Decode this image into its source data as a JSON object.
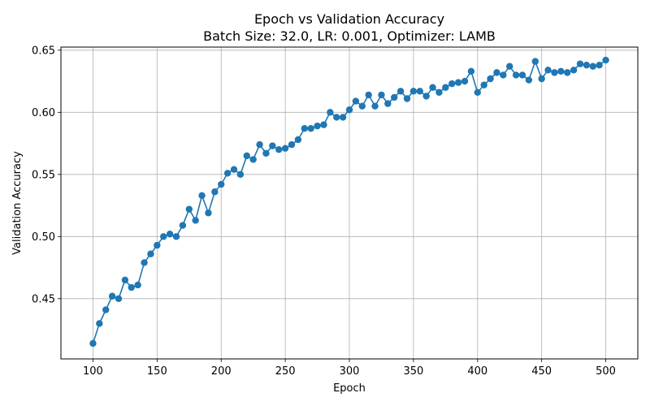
{
  "chart_data": {
    "type": "line",
    "title": "Epoch vs Validation Accuracy",
    "subtitle": "Batch Size: 32.0, LR: 0.001, Optimizer: LAMB",
    "xlabel": "Epoch",
    "ylabel": "Validation Accuracy",
    "xlim": [
      75,
      525
    ],
    "ylim": [
      0.4015,
      0.6525
    ],
    "xticks": [
      100,
      150,
      200,
      250,
      300,
      350,
      400,
      450,
      500
    ],
    "yticks": [
      0.45,
      0.5,
      0.55,
      0.6,
      0.65
    ],
    "ytick_labels": [
      "0.45",
      "0.50",
      "0.55",
      "0.60",
      "0.65"
    ],
    "grid": true,
    "marker": "circle",
    "color": "#1f77b4",
    "series": [
      {
        "x": [
          100,
          105,
          110,
          115,
          120,
          125,
          130,
          135,
          140,
          145,
          150,
          155,
          160,
          165,
          170,
          175,
          180,
          185,
          190,
          195,
          200,
          205,
          210,
          215,
          220,
          225,
          230,
          235,
          240,
          245,
          250,
          255,
          260,
          265,
          270,
          275,
          280,
          285,
          290,
          295,
          300,
          305,
          310,
          315,
          320,
          325,
          330,
          335,
          340,
          345,
          350,
          355,
          360,
          365,
          370,
          375,
          380,
          385,
          390,
          395,
          400,
          405,
          410,
          415,
          420,
          425,
          430,
          435,
          440,
          445,
          450,
          455,
          460,
          465,
          470,
          475,
          480,
          485,
          490,
          495,
          500
        ],
        "values": [
          0.414,
          0.43,
          0.441,
          0.452,
          0.45,
          0.465,
          0.459,
          0.461,
          0.479,
          0.486,
          0.493,
          0.5,
          0.502,
          0.5,
          0.509,
          0.522,
          0.513,
          0.533,
          0.519,
          0.536,
          0.542,
          0.551,
          0.554,
          0.55,
          0.565,
          0.562,
          0.574,
          0.567,
          0.573,
          0.57,
          0.571,
          0.574,
          0.578,
          0.587,
          0.587,
          0.589,
          0.59,
          0.6,
          0.596,
          0.596,
          0.602,
          0.609,
          0.605,
          0.614,
          0.605,
          0.614,
          0.607,
          0.612,
          0.617,
          0.611,
          0.617,
          0.617,
          0.613,
          0.62,
          0.616,
          0.62,
          0.623,
          0.624,
          0.625,
          0.633,
          0.616,
          0.622,
          0.627,
          0.632,
          0.63,
          0.637,
          0.63,
          0.63,
          0.626,
          0.641,
          0.627,
          0.634,
          0.632,
          0.633,
          0.632,
          0.634,
          0.639,
          0.638,
          0.637,
          0.638,
          0.642
        ]
      }
    ]
  }
}
